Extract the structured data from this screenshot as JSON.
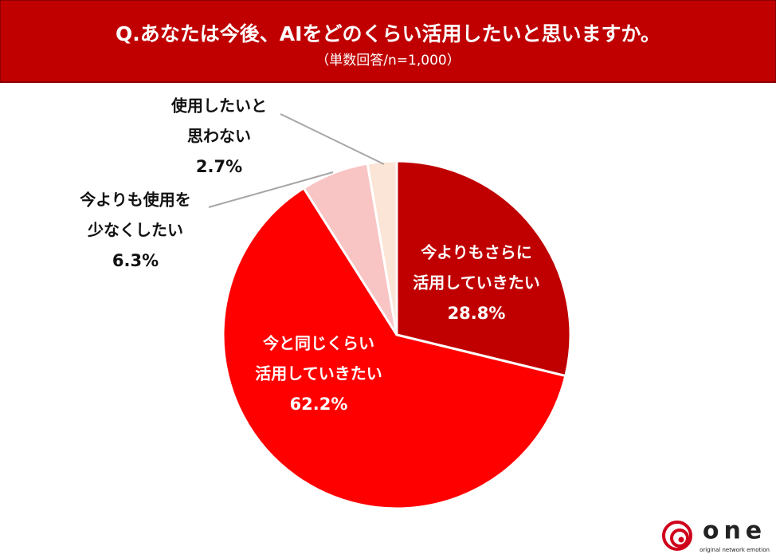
{
  "chart_data": {
    "type": "pie",
    "title": "Q.あなたは今後、AIをどのくらい活用したいと思いますか。",
    "subtitle": "（単数回答/n=1,000）",
    "categories": [
      [
        "今よりもさらに",
        "活用していきたい"
      ],
      [
        "今と同じくらい",
        "活用していきたい"
      ],
      [
        "今よりも使用を",
        "少なくしたい"
      ],
      [
        "使用したいと",
        "思わない"
      ]
    ],
    "values": [
      28.8,
      62.2,
      6.3,
      2.7
    ],
    "value_labels": [
      "28.8%",
      "62.2%",
      "6.3%",
      "2.7%"
    ],
    "colors": [
      "#c00000",
      "#ff0000",
      "#f9c4c4",
      "#fbe5d6"
    ]
  },
  "logo": {
    "text": "one",
    "tagline": "original network emotion"
  }
}
